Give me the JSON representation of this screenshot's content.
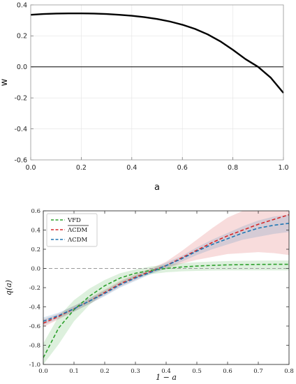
{
  "chart_data": [
    {
      "type": "line",
      "xlabel": "a",
      "ylabel": "w",
      "xlim": [
        0.0,
        1.0
      ],
      "ylim": [
        -0.6,
        0.4
      ],
      "xticks": [
        "0.0",
        "0.2",
        "0.4",
        "0.6",
        "0.8",
        "1.0"
      ],
      "yticks": [
        "0.4",
        "0.2",
        "0.0",
        "-0.2",
        "-0.4",
        "-0.6"
      ],
      "reference_line_y": 0.0,
      "series": [
        {
          "x": [
            0.0,
            0.05,
            0.1,
            0.15,
            0.2,
            0.25,
            0.3,
            0.35,
            0.4,
            0.45,
            0.5,
            0.55,
            0.6,
            0.65,
            0.7,
            0.75,
            0.8,
            0.85,
            0.9,
            0.95,
            1.0
          ],
          "y": [
            0.336,
            0.341,
            0.344,
            0.345,
            0.345,
            0.344,
            0.341,
            0.336,
            0.33,
            0.321,
            0.309,
            0.293,
            0.272,
            0.245,
            0.21,
            0.165,
            0.11,
            0.05,
            -0.0,
            -0.07,
            -0.168
          ],
          "color": "#000000"
        }
      ]
    },
    {
      "type": "line",
      "xlabel": "1 − a",
      "ylabel": "q(a)",
      "xlim": [
        0.0,
        0.8
      ],
      "ylim": [
        -1.0,
        0.6
      ],
      "xticks": [
        "0.0",
        "0.1",
        "0.2",
        "0.3",
        "0.4",
        "0.5",
        "0.6",
        "0.7",
        "0.8"
      ],
      "yticks": [
        "0.6",
        "0.4",
        "0.2",
        "0.0",
        "-0.2",
        "-0.4",
        "-0.6",
        "-0.8",
        "-1.0"
      ],
      "reference_line_y": 0.0,
      "legend_position": "top-left",
      "x": [
        0.0,
        0.05,
        0.1,
        0.15,
        0.2,
        0.25,
        0.3,
        0.35,
        0.4,
        0.45,
        0.5,
        0.55,
        0.6,
        0.65,
        0.7,
        0.75,
        0.8
      ],
      "series": [
        {
          "name": "VFD",
          "color": "#2ca02c",
          "y": [
            -0.93,
            -0.62,
            -0.43,
            -0.29,
            -0.18,
            -0.1,
            -0.05,
            -0.02,
            0.0,
            0.015,
            0.025,
            0.032,
            0.037,
            0.04,
            0.042,
            0.043,
            0.043
          ],
          "lower": [
            -1.0,
            -0.79,
            -0.55,
            -0.38,
            -0.25,
            -0.16,
            -0.1,
            -0.06,
            -0.04,
            -0.03,
            -0.025,
            -0.022,
            -0.02,
            -0.02,
            -0.02,
            -0.02,
            -0.02
          ],
          "upper": [
            -0.78,
            -0.5,
            -0.33,
            -0.21,
            -0.12,
            -0.05,
            -0.01,
            0.02,
            0.04,
            0.055,
            0.065,
            0.072,
            0.077,
            0.08,
            0.082,
            0.083,
            0.083
          ]
        },
        {
          "name": "ΛCDM (overline)",
          "color": "#d62728",
          "y": [
            -0.57,
            -0.5,
            -0.42,
            -0.34,
            -0.25,
            -0.16,
            -0.09,
            -0.03,
            0.03,
            0.11,
            0.19,
            0.27,
            0.34,
            0.4,
            0.46,
            0.51,
            0.56
          ],
          "lower": [
            -0.61,
            -0.53,
            -0.45,
            -0.37,
            -0.28,
            -0.19,
            -0.12,
            -0.05,
            0.0,
            0.05,
            0.09,
            0.12,
            0.15,
            0.16,
            0.17,
            0.16,
            0.14
          ],
          "upper": [
            -0.53,
            -0.47,
            -0.39,
            -0.31,
            -0.22,
            -0.13,
            -0.06,
            0.0,
            0.07,
            0.18,
            0.3,
            0.42,
            0.53,
            0.6,
            0.6,
            0.6,
            0.6
          ]
        },
        {
          "name": "ΛCDM",
          "color": "#1f77b4",
          "y": [
            -0.55,
            -0.49,
            -0.42,
            -0.34,
            -0.26,
            -0.17,
            -0.1,
            -0.04,
            0.03,
            0.1,
            0.18,
            0.25,
            0.31,
            0.37,
            0.42,
            0.45,
            0.47
          ],
          "lower": [
            -0.59,
            -0.52,
            -0.45,
            -0.37,
            -0.29,
            -0.2,
            -0.13,
            -0.06,
            0.0,
            0.07,
            0.14,
            0.2,
            0.25,
            0.3,
            0.33,
            0.36,
            0.38
          ],
          "upper": [
            -0.51,
            -0.46,
            -0.39,
            -0.31,
            -0.23,
            -0.14,
            -0.07,
            -0.01,
            0.06,
            0.13,
            0.22,
            0.3,
            0.37,
            0.44,
            0.5,
            0.54,
            0.56
          ]
        }
      ]
    }
  ]
}
